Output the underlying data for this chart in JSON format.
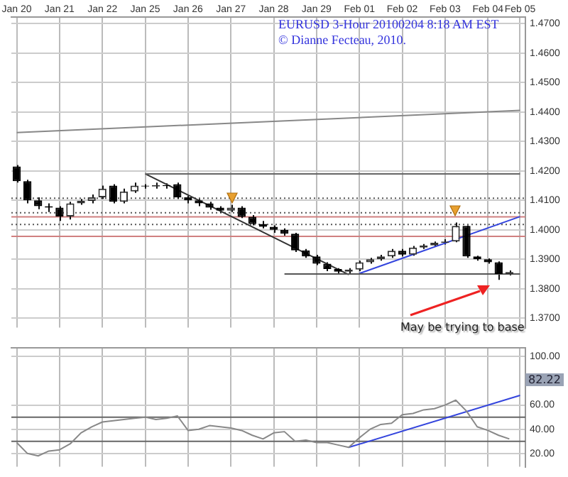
{
  "chart_data": [
    {
      "type": "candlestick",
      "title": "EURUSD 3-Hour 20100204 8:18 AM EST",
      "subtitle": "© Dianne Fecteau, 2010.",
      "categories": [
        "Jan 20",
        null,
        null,
        null,
        "Jan 21",
        null,
        null,
        null,
        "Jan 22",
        null,
        null,
        null,
        "Jan 25",
        null,
        null,
        null,
        "Jan 26",
        null,
        null,
        null,
        "Jan 27",
        null,
        null,
        null,
        "Jan 28",
        null,
        null,
        null,
        "Jan 29",
        null,
        null,
        null,
        "Feb 01",
        null,
        null,
        null,
        "Feb 02",
        null,
        null,
        null,
        "Feb 03",
        null,
        null,
        null,
        "Feb 04",
        null,
        null,
        "Feb 05"
      ],
      "ohlc": [
        [
          1.4215,
          1.422,
          1.416,
          1.4165
        ],
        [
          1.4165,
          1.417,
          1.409,
          1.41
        ],
        [
          1.41,
          1.411,
          1.407,
          1.408
        ],
        [
          1.408,
          1.409,
          1.406,
          1.4075
        ],
        [
          1.4075,
          1.408,
          1.403,
          1.4045
        ],
        [
          1.4045,
          1.4095,
          1.4035,
          1.409
        ],
        [
          1.409,
          1.4105,
          1.4085,
          1.4098
        ],
        [
          1.4098,
          1.412,
          1.409,
          1.411
        ],
        [
          1.411,
          1.415,
          1.4105,
          1.414
        ],
        [
          1.415,
          1.4155,
          1.409,
          1.4095
        ],
        [
          1.4095,
          1.414,
          1.409,
          1.413
        ],
        [
          1.413,
          1.416,
          1.4125,
          1.415
        ],
        [
          1.415,
          1.4155,
          1.414,
          1.4147
        ],
        [
          1.4147,
          1.416,
          1.414,
          1.4152
        ],
        [
          1.4152,
          1.4158,
          1.414,
          1.4148
        ],
        [
          1.4155,
          1.416,
          1.4105,
          1.411
        ],
        [
          1.411,
          1.4115,
          1.409,
          1.41
        ],
        [
          1.41,
          1.4105,
          1.408,
          1.409
        ],
        [
          1.409,
          1.4095,
          1.4068,
          1.4075
        ],
        [
          1.4075,
          1.408,
          1.4058,
          1.4065
        ],
        [
          1.4065,
          1.4085,
          1.406,
          1.4075
        ],
        [
          1.4075,
          1.408,
          1.404,
          1.4044
        ],
        [
          1.4044,
          1.405,
          1.4015,
          1.402
        ],
        [
          1.402,
          1.403,
          1.4005,
          1.401
        ],
        [
          1.401,
          1.4015,
          1.399,
          1.4
        ],
        [
          1.4,
          1.4005,
          1.398,
          1.3987
        ],
        [
          1.3987,
          1.399,
          1.3925,
          1.393
        ],
        [
          1.393,
          1.3935,
          1.3905,
          1.391
        ],
        [
          1.391,
          1.3915,
          1.388,
          1.3885
        ],
        [
          1.3885,
          1.389,
          1.386,
          1.3867
        ],
        [
          1.3867,
          1.387,
          1.3852,
          1.3858
        ],
        [
          1.3858,
          1.387,
          1.3848,
          1.3865
        ],
        [
          1.3865,
          1.3895,
          1.386,
          1.389
        ],
        [
          1.389,
          1.3905,
          1.3885,
          1.39
        ],
        [
          1.39,
          1.3915,
          1.3895,
          1.391
        ],
        [
          1.391,
          1.3935,
          1.3905,
          1.3929
        ],
        [
          1.3929,
          1.3935,
          1.391,
          1.3916
        ],
        [
          1.3916,
          1.3945,
          1.3912,
          1.394
        ],
        [
          1.394,
          1.3952,
          1.3935,
          1.3947
        ],
        [
          1.3947,
          1.396,
          1.3942,
          1.3956
        ],
        [
          1.3956,
          1.3968,
          1.395,
          1.396
        ],
        [
          1.396,
          1.4025,
          1.3958,
          1.4013
        ],
        [
          1.4013,
          1.4015,
          1.3905,
          1.391
        ],
        [
          1.391,
          1.3912,
          1.3895,
          1.39
        ],
        [
          1.39,
          1.3903,
          1.3885,
          1.389
        ],
        [
          1.389,
          1.3893,
          1.383,
          1.385
        ],
        [
          1.385,
          1.3862,
          1.3845,
          1.3857
        ],
        null
      ],
      "series": [
        {
          "type": "line",
          "color": "#888888",
          "values": [
            1.433,
            null,
            null,
            null,
            null,
            null,
            null,
            null,
            null,
            null,
            null,
            null,
            null,
            null,
            null,
            null,
            null,
            null,
            null,
            null,
            null,
            null,
            null,
            null,
            null,
            null,
            null,
            null,
            null,
            null,
            null,
            null,
            null,
            null,
            null,
            null,
            null,
            null,
            null,
            null,
            null,
            null,
            null,
            null,
            null,
            null,
            null,
            1.4405
          ]
        },
        {
          "type": "line",
          "color": "#666666",
          "values": [
            null,
            null,
            null,
            null,
            null,
            null,
            null,
            null,
            null,
            null,
            null,
            null,
            1.419,
            null,
            null,
            null,
            null,
            null,
            null,
            null,
            null,
            null,
            null,
            null,
            null,
            null,
            null,
            null,
            null,
            null,
            null,
            null,
            null,
            null,
            null,
            null,
            null,
            null,
            null,
            null,
            null,
            null,
            null,
            null,
            null,
            null,
            null,
            1.419
          ]
        },
        {
          "type": "line",
          "color": "#555555",
          "values": [
            null,
            null,
            null,
            null,
            null,
            null,
            null,
            null,
            null,
            null,
            null,
            null,
            null,
            null,
            null,
            null,
            null,
            null,
            null,
            null,
            null,
            null,
            null,
            null,
            null,
            1.385,
            null,
            null,
            null,
            null,
            null,
            null,
            null,
            null,
            null,
            null,
            null,
            null,
            null,
            null,
            null,
            null,
            null,
            null,
            null,
            null,
            null,
            1.385
          ]
        },
        {
          "type": "line",
          "color": "#333333",
          "values": [
            null,
            null,
            null,
            null,
            null,
            null,
            null,
            null,
            null,
            null,
            null,
            null,
            1.419,
            null,
            null,
            null,
            null,
            null,
            null,
            null,
            null,
            null,
            null,
            null,
            null,
            null,
            null,
            null,
            null,
            null,
            null,
            1.3848,
            null,
            null,
            null,
            null,
            null,
            null,
            null,
            null,
            null,
            null,
            null,
            null,
            null,
            null,
            null,
            null
          ]
        },
        {
          "type": "line",
          "color": "#3344dd",
          "values": [
            null,
            null,
            null,
            null,
            null,
            null,
            null,
            null,
            null,
            null,
            null,
            null,
            null,
            null,
            null,
            null,
            null,
            null,
            null,
            null,
            null,
            null,
            null,
            null,
            null,
            null,
            null,
            null,
            null,
            null,
            null,
            null,
            1.3852,
            null,
            null,
            null,
            null,
            null,
            null,
            null,
            null,
            null,
            null,
            null,
            null,
            null,
            null,
            1.4045
          ]
        }
      ],
      "ylim": [
        1.3668,
        1.4722
      ],
      "yticks": [
        {
          "value": 1.47,
          "label": "1.4700"
        },
        {
          "value": 1.46,
          "label": "1.4600"
        },
        {
          "value": 1.45,
          "label": "1.4500"
        },
        {
          "value": 1.44,
          "label": "1.4400"
        },
        {
          "value": 1.43,
          "label": "1.4300"
        },
        {
          "value": 1.42,
          "label": "1.4200"
        },
        {
          "value": 1.41,
          "label": "1.4100"
        },
        {
          "value": 1.4,
          "label": "1.4000"
        },
        {
          "value": 1.39,
          "label": "1.3900"
        },
        {
          "value": 1.38,
          "label": "1.3800"
        },
        {
          "value": 1.37,
          "label": "1.3700"
        }
      ],
      "ref_lines": [
        {
          "axis": "y",
          "value": 1.4107,
          "color": "#555555",
          "line_style": "dotted"
        },
        {
          "axis": "y",
          "value": 1.4058,
          "color": "#555555",
          "line_style": "dotted"
        },
        {
          "axis": "y",
          "value": 1.4018,
          "color": "#555555",
          "line_style": "dotted"
        },
        {
          "axis": "y",
          "value": 1.4044,
          "color": "#d08080"
        },
        {
          "axis": "y",
          "value": 1.3978,
          "color": "#d08080"
        }
      ],
      "annotations": [
        "May be trying to base"
      ],
      "grid": true
    },
    {
      "type": "line",
      "categories": [
        null,
        null,
        null,
        null,
        null,
        null,
        null,
        null,
        null,
        null,
        null,
        null,
        null,
        null,
        null,
        null,
        null,
        null,
        null,
        null,
        null,
        null,
        null,
        null,
        null,
        null,
        null,
        null,
        null,
        null,
        null,
        null,
        null,
        null,
        null,
        null,
        null,
        null,
        null,
        null,
        null,
        null,
        null,
        null,
        null,
        null,
        null,
        null
      ],
      "series": [
        {
          "color": "#888888",
          "values": [
            29,
            20,
            18,
            22,
            23,
            28,
            37,
            42,
            46,
            47,
            48,
            49,
            50,
            48,
            49,
            51,
            39,
            40,
            43,
            42,
            41,
            39,
            35,
            32,
            37,
            38,
            30,
            31,
            29,
            29,
            27,
            25,
            33,
            40,
            44,
            45,
            52,
            53,
            56,
            57,
            60,
            64,
            55,
            42,
            39,
            35,
            32,
            null
          ]
        },
        {
          "color": "#3344dd",
          "values": [
            null,
            null,
            null,
            null,
            null,
            null,
            null,
            null,
            null,
            null,
            null,
            null,
            null,
            null,
            null,
            null,
            null,
            null,
            null,
            null,
            null,
            null,
            null,
            null,
            null,
            null,
            null,
            null,
            null,
            null,
            null,
            25,
            null,
            null,
            null,
            null,
            null,
            null,
            null,
            null,
            null,
            null,
            null,
            null,
            null,
            null,
            null,
            68
          ]
        }
      ],
      "ylim": [
        9,
        107
      ],
      "yticks": [
        {
          "value": 100,
          "label": "100.00"
        },
        {
          "value": 60,
          "label": "60.00"
        },
        {
          "value": 40,
          "label": "40.00"
        },
        {
          "value": 20,
          "label": "20.00"
        }
      ],
      "ref_lines": [
        {
          "axis": "y",
          "value": 50,
          "color": "#666666"
        },
        {
          "axis": "y",
          "value": 30,
          "color": "#666666"
        }
      ],
      "annotations": [
        "82.22"
      ],
      "tick_labels": "y",
      "grid": true
    }
  ]
}
